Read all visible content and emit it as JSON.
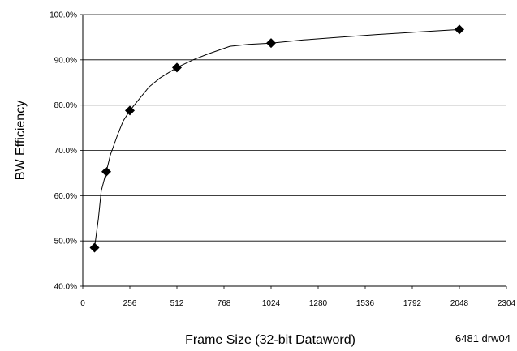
{
  "chart_data": {
    "type": "line",
    "title": "",
    "xlabel": "Frame Size (32-bit Dataword)",
    "ylabel": "BW Efficiency",
    "note": "6481 drw04",
    "xlim": [
      0,
      2304
    ],
    "ylim": [
      40,
      100
    ],
    "x_ticks": [
      0,
      256,
      512,
      768,
      1024,
      1280,
      1536,
      1792,
      2048,
      2304
    ],
    "y_ticks": [
      40,
      50,
      60,
      70,
      80,
      90,
      100
    ],
    "y_tick_labels": [
      "40.0%",
      "50.0%",
      "60.0%",
      "70.0%",
      "80.0%",
      "90.0%",
      "100.0%"
    ],
    "grid": "horizontal",
    "legend": "none",
    "series": [
      {
        "marker": "diamond",
        "color": "#000000",
        "x": [
          64,
          128,
          256,
          512,
          1024,
          2048
        ],
        "y": [
          48.5,
          65.3,
          78.8,
          88.3,
          93.7,
          96.7
        ]
      }
    ],
    "curve_trace": {
      "x": [
        64,
        85,
        100,
        128,
        150,
        190,
        220,
        256,
        300,
        360,
        420,
        512,
        600,
        680,
        800,
        900,
        1024,
        1200,
        1400,
        1600,
        1800,
        2048
      ],
      "y": [
        48.5,
        55,
        61,
        65.3,
        69,
        73.5,
        76.5,
        78.8,
        81,
        84,
        86,
        88.3,
        90,
        91.3,
        93,
        93.4,
        93.7,
        94.4,
        95,
        95.6,
        96.1,
        96.7
      ]
    }
  }
}
